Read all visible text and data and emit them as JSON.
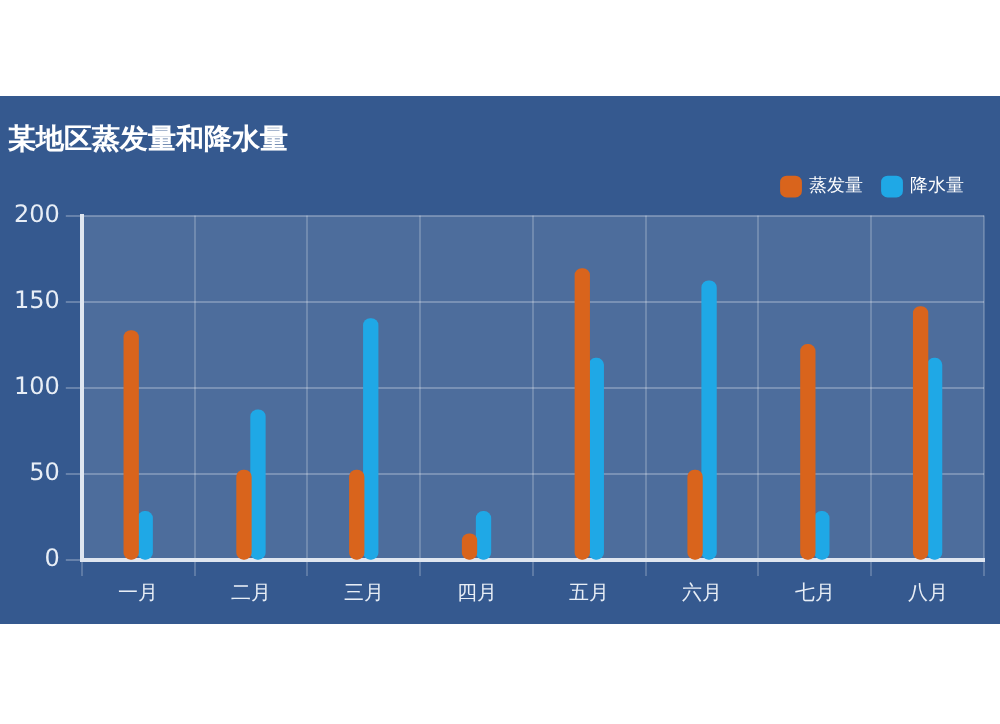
{
  "chart_data": {
    "type": "bar",
    "title": "某地区蒸发量和降水量",
    "categories": [
      "一月",
      "二月",
      "三月",
      "四月",
      "五月",
      "六月",
      "七月",
      "八月"
    ],
    "series": [
      {
        "name": "蒸发量",
        "color": "#d9641c",
        "values": [
          133,
          52,
          52,
          15,
          169,
          52,
          125,
          147
        ]
      },
      {
        "name": "降水量",
        "color": "#1fa8e6",
        "values": [
          28,
          87,
          140,
          28,
          117,
          162,
          28,
          117
        ]
      }
    ],
    "ylim": [
      0,
      200
    ],
    "yticks": [
      0,
      50,
      100,
      150,
      200
    ],
    "grid": true,
    "legend": "top right"
  }
}
